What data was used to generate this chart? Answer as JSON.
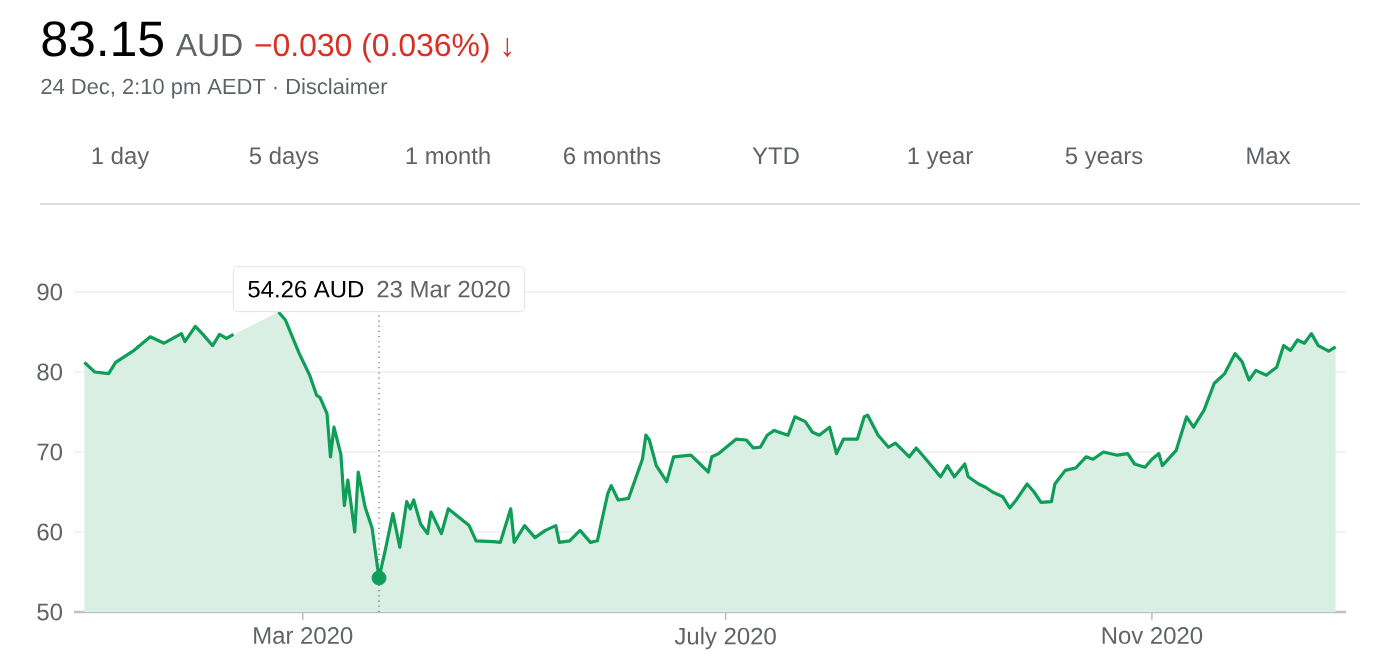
{
  "chart_data": {
    "type": "area",
    "title": "83.15",
    "subtitle": "24 Dec, 2:10 pm AEDT · Disclaimer",
    "x": [
      "2019-12-29",
      "2020-01-01",
      "2020-01-05",
      "2020-01-07",
      "2020-01-12",
      "2020-01-17",
      "2020-01-21",
      "2020-01-26",
      "2020-01-27",
      "2020-01-30",
      "2020-02-01",
      "2020-02-04",
      "2020-02-06",
      "2020-02-08",
      "2020-02-10",
      "2020-02-12",
      "2020-02-17",
      "2020-02-23",
      "2020-02-25",
      "2020-02-27",
      "2020-02-29",
      "2020-03-03",
      "2020-03-05",
      "2020-03-06",
      "2020-03-08",
      "2020-03-09",
      "2020-03-10",
      "2020-03-12",
      "2020-03-13",
      "2020-03-14",
      "2020-03-16",
      "2020-03-17",
      "2020-03-19",
      "2020-03-21",
      "2020-03-23",
      "2020-03-25",
      "2020-03-27",
      "2020-03-29",
      "2020-03-31",
      "2020-04-01",
      "2020-04-02",
      "2020-04-04",
      "2020-04-06",
      "2020-04-07",
      "2020-04-10",
      "2020-04-12",
      "2020-04-18",
      "2020-04-20",
      "2020-04-25",
      "2020-04-27",
      "2020-04-30",
      "2020-05-01",
      "2020-05-04",
      "2020-05-07",
      "2020-05-10",
      "2020-05-13",
      "2020-05-14",
      "2020-05-17",
      "2020-05-20",
      "2020-05-23",
      "2020-05-25",
      "2020-05-28",
      "2020-05-29",
      "2020-05-31",
      "2020-06-03",
      "2020-06-07",
      "2020-06-08",
      "2020-06-09",
      "2020-06-11",
      "2020-06-14",
      "2020-06-16",
      "2020-06-21",
      "2020-06-26",
      "2020-06-27",
      "2020-06-29",
      "2020-07-04",
      "2020-07-07",
      "2020-07-09",
      "2020-07-11",
      "2020-07-13",
      "2020-07-15",
      "2020-07-19",
      "2020-07-21",
      "2020-07-24",
      "2020-07-26",
      "2020-07-28",
      "2020-07-31",
      "2020-08-02",
      "2020-08-04",
      "2020-08-08",
      "2020-08-10",
      "2020-08-11",
      "2020-08-14",
      "2020-08-17",
      "2020-08-19",
      "2020-08-23",
      "2020-08-25",
      "2020-08-28",
      "2020-09-01",
      "2020-09-03",
      "2020-09-05",
      "2020-09-08",
      "2020-09-09",
      "2020-09-12",
      "2020-09-14",
      "2020-09-16",
      "2020-09-19",
      "2020-09-21",
      "2020-09-23",
      "2020-09-26",
      "2020-09-28",
      "2020-09-30",
      "2020-10-03",
      "2020-10-04",
      "2020-10-07",
      "2020-10-10",
      "2020-10-13",
      "2020-10-15",
      "2020-10-18",
      "2020-10-22",
      "2020-10-25",
      "2020-10-27",
      "2020-10-30",
      "2020-11-01",
      "2020-11-03",
      "2020-11-04",
      "2020-11-08",
      "2020-11-11",
      "2020-11-13",
      "2020-11-16",
      "2020-11-19",
      "2020-11-22",
      "2020-11-25",
      "2020-11-27",
      "2020-11-29",
      "2020-12-01",
      "2020-12-04",
      "2020-12-07",
      "2020-12-09",
      "2020-12-11",
      "2020-12-13",
      "2020-12-15",
      "2020-12-17",
      "2020-12-19",
      "2020-12-22",
      "2020-12-24"
    ],
    "series": [
      {
        "color": "#0f9d58",
        "values": [
          81.2,
          80.0,
          79.8,
          81.2,
          82.6,
          84.4,
          83.6,
          84.8,
          83.8,
          85.7,
          84.8,
          83.3,
          84.7,
          84.2,
          84.7,
          null,
          null,
          87.5,
          86.5,
          84.4,
          82.3,
          79.6,
          77.1,
          76.8,
          74.8,
          69.4,
          73.1,
          69.7,
          63.3,
          66.5,
          60.0,
          67.5,
          63.1,
          60.5,
          54.26,
          58.1,
          62.3,
          58.1,
          63.8,
          62.9,
          64.0,
          61.0,
          59.8,
          62.5,
          59.8,
          62.9,
          60.8,
          58.9,
          58.8,
          58.7,
          62.9,
          58.7,
          60.8,
          59.3,
          60.2,
          60.8,
          58.7,
          58.9,
          60.2,
          58.7,
          58.9,
          64.8,
          65.8,
          64.0,
          64.2,
          69.1,
          72.1,
          71.5,
          68.3,
          66.3,
          69.4,
          69.6,
          67.5,
          69.4,
          69.8,
          71.6,
          71.5,
          70.5,
          70.6,
          72.1,
          72.7,
          72.1,
          74.4,
          73.8,
          72.5,
          72.1,
          73.1,
          69.8,
          71.6,
          71.6,
          74.4,
          74.6,
          72.1,
          70.6,
          71.1,
          69.4,
          70.5,
          69.0,
          66.9,
          68.3,
          66.9,
          68.5,
          66.9,
          66.0,
          65.6,
          65.0,
          64.4,
          63.0,
          64.1,
          66.0,
          65.0,
          63.7,
          63.8,
          66.0,
          67.7,
          68.0,
          69.4,
          69.1,
          70.0,
          69.6,
          69.8,
          68.5,
          68.1,
          69.1,
          69.8,
          68.3,
          70.2,
          74.4,
          73.1,
          75.2,
          78.6,
          79.8,
          82.3,
          81.3,
          79.0,
          80.2,
          79.6,
          80.6,
          83.3,
          82.7,
          84.0,
          83.6,
          84.8,
          83.3,
          82.6,
          83.15
        ]
      },
      {
        "type": "scatter",
        "color": "#0f9d58",
        "marker": "circle",
        "x": [
          "2020-03-23"
        ],
        "values": [
          54.26
        ]
      }
    ],
    "xlim": [
      "2019-12-26",
      "2020-12-27"
    ],
    "xticks": [
      {
        "value": "2020-03-01",
        "label": "Mar 2020"
      },
      {
        "value": "2020-07-01",
        "label": "July 2020"
      },
      {
        "value": "2020-11-01",
        "label": "Nov 2020"
      }
    ],
    "ylim": [
      50,
      90
    ],
    "yticks": [
      50,
      60,
      70,
      80,
      90
    ],
    "grid": "y",
    "ref_lines": [
      {
        "axis": "x",
        "value": "2020-03-23",
        "line_style": "dotted",
        "color": "#5f6368"
      }
    ],
    "annotations": [
      "54.26 AUD",
      "23 Mar 2020",
      "AUD",
      "−0.030 (0.036%) ↓",
      "1 day",
      "5 days",
      "1 month",
      "6 months",
      "YTD",
      "1 year",
      "5 years",
      "Max"
    ]
  }
}
